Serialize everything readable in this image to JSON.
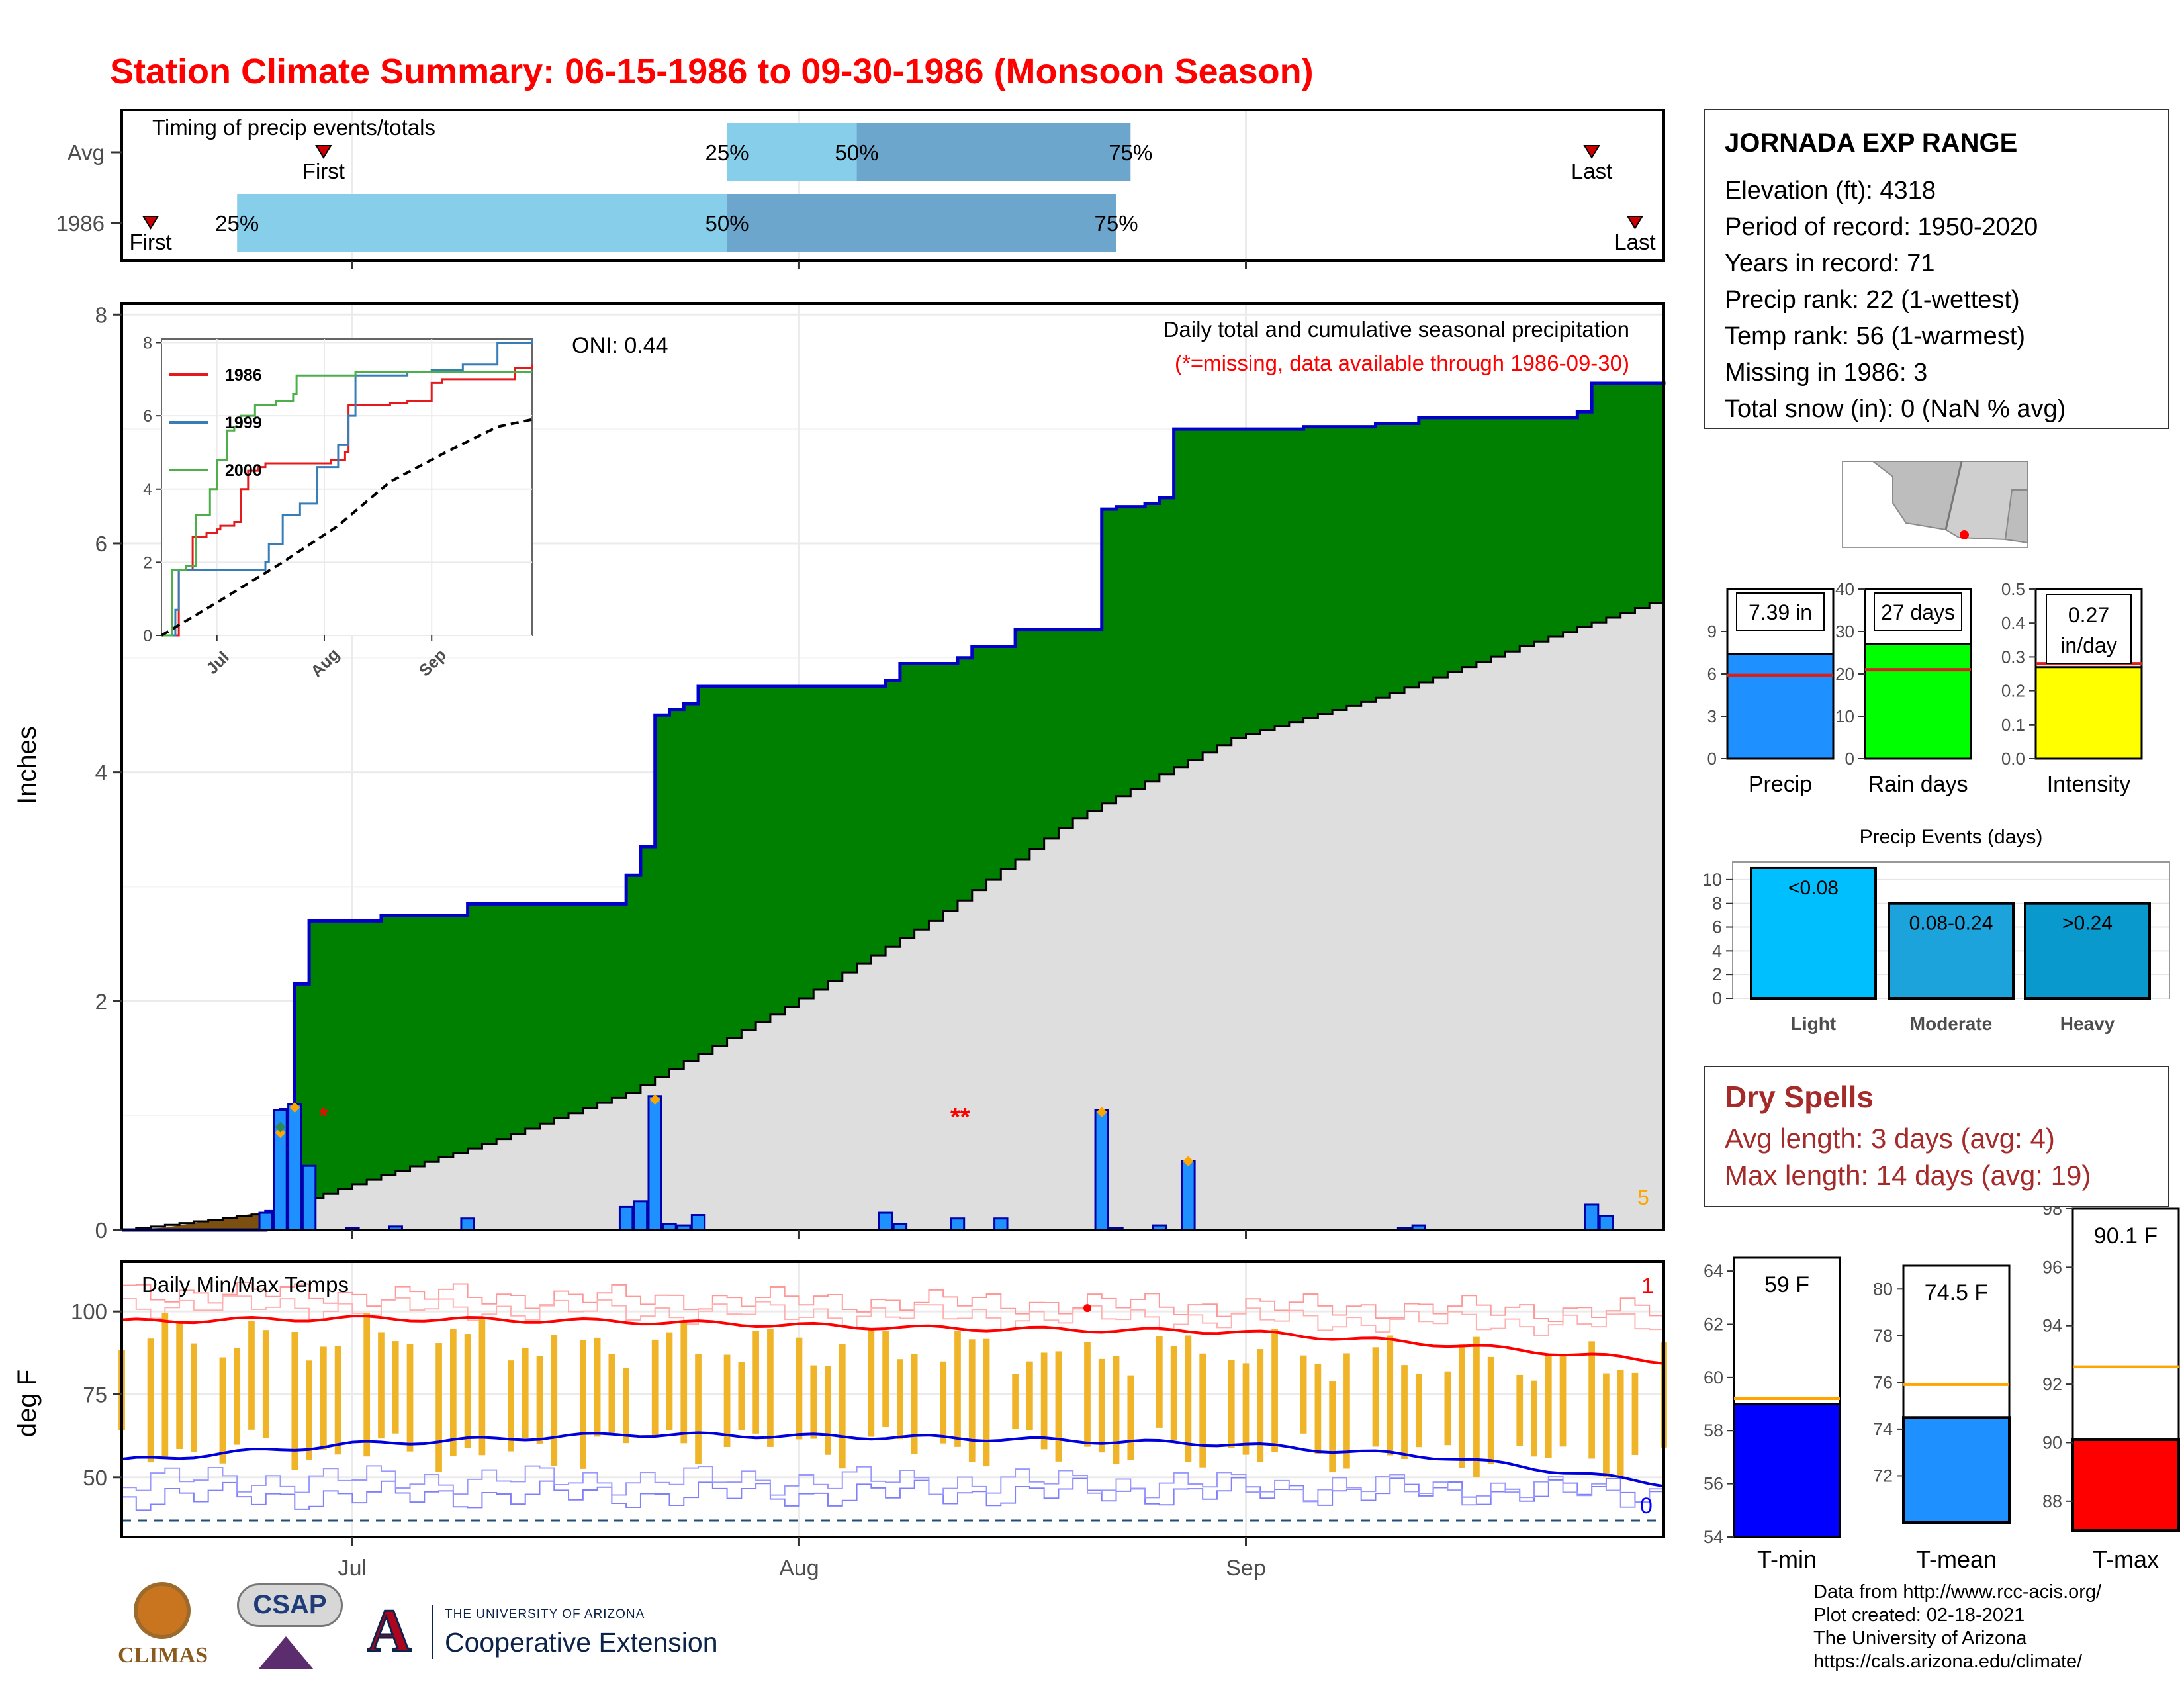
{
  "title": "Station Climate Summary: 06-15-1986 to 09-30-1986 (Monsoon Season)",
  "timing": {
    "title": "Timing of precip events/totals",
    "rows": [
      {
        "label": "Avg",
        "first": "06-29",
        "last": "09-25",
        "q25": "07-27",
        "q50": "08-05",
        "q75": "08-24"
      },
      {
        "label": "1986",
        "first": "06-17",
        "last": "09-28",
        "q25": "06-23",
        "q50": "07-27",
        "q75": "08-23"
      }
    ],
    "first_label": "First",
    "last_label": "Last",
    "pct25": "25%",
    "pct50": "50%",
    "pct75": "75%"
  },
  "main": {
    "ylabel": "Inches",
    "yticks": [
      "0",
      "2",
      "4",
      "6",
      "8"
    ],
    "xticks": [
      "Jul",
      "Aug",
      "Sep"
    ],
    "oni": "ONI: 0.44",
    "legend_line1": "Daily total and cumulative seasonal precipitation",
    "legend_line2": "(*=missing, data available through 1986-09-30)",
    "missing_marker": "**",
    "corner_count": "5",
    "colors": {
      "surplus": "#008000",
      "cumulative_line": "#0000cc",
      "avg_fill": "#dedede",
      "bars": "#1e90ff",
      "deficit": "#7a4f0f",
      "title": "#ff0000"
    }
  },
  "inset": {
    "yticks": [
      "0",
      "2",
      "4",
      "6",
      "8"
    ],
    "xticks": [
      "Jul",
      "Aug",
      "Sep"
    ],
    "series": [
      {
        "name": "1986",
        "color": "#e41a1c"
      },
      {
        "name": "1999",
        "color": "#377eb8"
      },
      {
        "name": "2000",
        "color": "#4daf4a"
      }
    ]
  },
  "temps": {
    "title": "Daily Min/Max Temps",
    "ylabel": "deg F",
    "yticks": [
      "50",
      "75",
      "100"
    ],
    "xticks": [
      "Jul",
      "Aug",
      "Sep"
    ],
    "record_high_count": "1",
    "record_low_count": "0"
  },
  "station": {
    "name": "JORNADA EXP RANGE",
    "lines": [
      "Elevation (ft): 4318",
      "Period of record: 1950-2020",
      "Years in record: 71",
      "Precip rank: 22 (1-wettest)",
      "Temp rank: 56 (1-warmest)",
      "Missing in 1986: 3",
      "Total snow (in): 0 (NaN % avg)"
    ]
  },
  "summary_bars": [
    {
      "label": "Precip",
      "value_text": "7.39 in",
      "value": 7.39,
      "avg": 5.9,
      "ymax": 12,
      "yticks": [
        "0",
        "3",
        "6",
        "9"
      ],
      "color": "#1e90ff"
    },
    {
      "label": "Rain days",
      "value_text": "27 days",
      "value": 27,
      "avg": 21,
      "ymax": 40,
      "yticks": [
        "0",
        "10",
        "20",
        "30",
        "40"
      ],
      "color": "#00ff00"
    },
    {
      "label": "Intensity",
      "value_text": "0.27 in/day",
      "value": 0.27,
      "avg": 0.28,
      "ymax": 0.5,
      "yticks": [
        "0.0",
        "0.1",
        "0.2",
        "0.3",
        "0.4",
        "0.5"
      ],
      "color": "#ffff00"
    }
  ],
  "events": {
    "title": "Precip Events (days)",
    "yticks": [
      "0",
      "2",
      "4",
      "6",
      "8",
      "10"
    ],
    "bars": [
      {
        "label": "Light",
        "inner": "<0.08",
        "value": 11,
        "color": "#00bfff"
      },
      {
        "label": "Moderate",
        "inner": "0.08-0.24",
        "value": 8,
        "color": "#1ca3dc"
      },
      {
        "label": "Heavy",
        "inner": ">0.24",
        "value": 8,
        "color": "#0999cc"
      }
    ]
  },
  "dry_spells": {
    "title": "Dry Spells",
    "lines": [
      "Avg length: 3 days (avg: 4)",
      "Max length: 14 days (avg: 19)"
    ]
  },
  "temp_bars": [
    {
      "label": "T-min",
      "value_text": "59 F",
      "value": 59,
      "avg": 59.2,
      "ymin": 54,
      "ymax": 64.5,
      "yticks": [
        "54",
        "56",
        "58",
        "60",
        "62",
        "64"
      ],
      "color": "#0000ff"
    },
    {
      "label": "T-mean",
      "value_text": "74.5 F",
      "value": 74.5,
      "avg": 75.9,
      "ymin": 70,
      "ymax": 81,
      "yticks": [
        "72",
        "74",
        "76",
        "78",
        "80"
      ],
      "color": "#1e90ff"
    },
    {
      "label": "T-max",
      "value_text": "90.1 F",
      "value": 90.1,
      "avg": 92.6,
      "ymin": 87,
      "ymax": 98,
      "yticks": [
        "88",
        "90",
        "92",
        "94",
        "96",
        "98"
      ],
      "color": "#ff0000"
    }
  ],
  "logos": {
    "climas": "CLIMAS",
    "csap": "CSAP",
    "ua_small": "THE UNIVERSITY OF ARIZONA",
    "ua_big": "Cooperative Extension"
  },
  "credits": [
    "Data from http://www.rcc-acis.org/",
    "Plot created: 02-18-2021",
    "The University of Arizona",
    "https://cals.arizona.edu/climate/"
  ],
  "chart_data": [
    {
      "type": "area",
      "title": "Daily total and cumulative seasonal precipitation",
      "ylabel": "Inches",
      "xlim": [
        "1986-06-15",
        "1986-09-30"
      ],
      "ylim": [
        0,
        8.1
      ],
      "grid": true,
      "cumulative_1986": [
        [
          "06-15",
          0.0
        ],
        [
          "06-25",
          0.16
        ],
        [
          "06-26",
          1.05
        ],
        [
          "06-27",
          2.15
        ],
        [
          "06-28",
          2.7
        ],
        [
          "07-03",
          2.75
        ],
        [
          "07-09",
          2.85
        ],
        [
          "07-20",
          3.1
        ],
        [
          "07-21",
          3.35
        ],
        [
          "07-22",
          4.5
        ],
        [
          "07-23",
          4.55
        ],
        [
          "07-24",
          4.6
        ],
        [
          "07-25",
          4.75
        ],
        [
          "08-07",
          4.8
        ],
        [
          "08-08",
          4.95
        ],
        [
          "08-12",
          5.0
        ],
        [
          "08-13",
          5.1
        ],
        [
          "08-16",
          5.25
        ],
        [
          "08-22",
          6.3
        ],
        [
          "08-23",
          6.32
        ],
        [
          "08-25",
          6.35
        ],
        [
          "08-26",
          6.4
        ],
        [
          "08-27",
          7.0
        ],
        [
          "09-05",
          7.02
        ],
        [
          "09-10",
          7.05
        ],
        [
          "09-13",
          7.1
        ],
        [
          "09-24",
          7.15
        ],
        [
          "09-25",
          7.4
        ],
        [
          "09-30",
          7.39
        ]
      ],
      "average_cumulative": [
        [
          "06-15",
          0.0
        ],
        [
          "06-25",
          0.15
        ],
        [
          "07-01",
          0.4
        ],
        [
          "07-10",
          0.75
        ],
        [
          "07-20",
          1.2
        ],
        [
          "07-31",
          1.95
        ],
        [
          "08-10",
          2.7
        ],
        [
          "08-20",
          3.6
        ],
        [
          "08-31",
          4.3
        ],
        [
          "09-10",
          4.65
        ],
        [
          "09-20",
          5.1
        ],
        [
          "09-30",
          5.52
        ]
      ],
      "daily_precip": [
        [
          "06-25",
          0.15
        ],
        [
          "06-26",
          1.05
        ],
        [
          "06-27",
          1.1
        ],
        [
          "06-28",
          0.56
        ],
        [
          "07-01",
          0.02
        ],
        [
          "07-04",
          0.03
        ],
        [
          "07-09",
          0.1
        ],
        [
          "07-20",
          0.2
        ],
        [
          "07-21",
          0.25
        ],
        [
          "07-22",
          1.17
        ],
        [
          "07-23",
          0.05
        ],
        [
          "07-24",
          0.04
        ],
        [
          "07-25",
          0.13
        ],
        [
          "08-07",
          0.15
        ],
        [
          "08-08",
          0.05
        ],
        [
          "08-12",
          0.1
        ],
        [
          "08-15",
          0.1
        ],
        [
          "08-22",
          1.05
        ],
        [
          "08-23",
          0.02
        ],
        [
          "08-26",
          0.04
        ],
        [
          "08-28",
          0.6
        ],
        [
          "09-12",
          0.02
        ],
        [
          "09-13",
          0.04
        ],
        [
          "09-25",
          0.22
        ],
        [
          "09-26",
          0.12
        ]
      ],
      "missing_dates": [
        "06-29",
        "08-11",
        "08-12"
      ],
      "oni": 0.44
    },
    {
      "type": "line",
      "ylim": [
        0,
        8.1
      ],
      "series": [
        {
          "name": "1986",
          "values": [
            [
              "06-15",
              0
            ],
            [
              "06-20",
              1.8
            ],
            [
              "06-24",
              2.7
            ],
            [
              "06-28",
              2.8
            ],
            [
              "07-01",
              2.9
            ],
            [
              "07-02",
              3.0
            ],
            [
              "07-06",
              3.1
            ],
            [
              "07-08",
              4.0
            ],
            [
              "07-10",
              4.5
            ],
            [
              "07-13",
              4.6
            ],
            [
              "07-15",
              4.7
            ],
            [
              "08-03",
              4.8
            ],
            [
              "08-07",
              5.0
            ],
            [
              "08-08",
              6.3
            ],
            [
              "08-20",
              6.35
            ],
            [
              "08-25",
              6.4
            ],
            [
              "09-01",
              6.9
            ],
            [
              "09-04",
              7.0
            ],
            [
              "09-25",
              7.3
            ],
            [
              "09-30",
              7.4
            ]
          ]
        },
        {
          "name": "1999",
          "values": [
            [
              "06-15",
              0
            ],
            [
              "06-19",
              0.7
            ],
            [
              "06-20",
              1.8
            ],
            [
              "07-15",
              2.0
            ],
            [
              "07-16",
              2.5
            ],
            [
              "07-20",
              3.3
            ],
            [
              "07-25",
              3.6
            ],
            [
              "07-30",
              4.6
            ],
            [
              "08-05",
              5.2
            ],
            [
              "08-08",
              6.0
            ],
            [
              "08-10",
              7.1
            ],
            [
              "08-25",
              7.2
            ],
            [
              "09-01",
              7.25
            ],
            [
              "09-10",
              7.4
            ],
            [
              "09-20",
              8.0
            ],
            [
              "09-30",
              8.1
            ]
          ]
        },
        {
          "name": "2000",
          "values": [
            [
              "06-15",
              0
            ],
            [
              "06-18",
              1.8
            ],
            [
              "06-22",
              1.9
            ],
            [
              "06-25",
              3.3
            ],
            [
              "06-29",
              4.0
            ],
            [
              "07-01",
              4.8
            ],
            [
              "07-04",
              5.6
            ],
            [
              "07-06",
              5.7
            ],
            [
              "07-08",
              6.0
            ],
            [
              "07-12",
              6.3
            ],
            [
              "07-18",
              6.4
            ],
            [
              "07-23",
              6.6
            ],
            [
              "07-24",
              7.1
            ],
            [
              "08-10",
              7.2
            ],
            [
              "09-30",
              7.2
            ]
          ]
        },
        {
          "name": "Average",
          "values": [
            [
              "06-15",
              0
            ],
            [
              "07-01",
              0.9
            ],
            [
              "07-20",
              2.0
            ],
            [
              "08-05",
              3.0
            ],
            [
              "08-20",
              4.2
            ],
            [
              "09-05",
              5.0
            ],
            [
              "09-20",
              5.7
            ],
            [
              "09-30",
              5.9
            ]
          ]
        }
      ]
    },
    {
      "type": "bar",
      "title": "Daily Min/Max Temps",
      "ylabel": "deg F",
      "ylim": [
        32,
        115
      ],
      "daily_range_bars": "daily min-max range for each day",
      "avg_max": [
        [
          "06-15",
          97
        ],
        [
          "07-01",
          98
        ],
        [
          "07-20",
          97
        ],
        [
          "08-10",
          95
        ],
        [
          "08-31",
          94
        ],
        [
          "09-15",
          90
        ],
        [
          "09-30",
          85
        ]
      ],
      "avg_min": [
        [
          "06-15",
          55
        ],
        [
          "07-01",
          60
        ],
        [
          "07-20",
          63
        ],
        [
          "08-10",
          62
        ],
        [
          "08-31",
          60
        ],
        [
          "09-15",
          56
        ],
        [
          "09-30",
          48
        ]
      ],
      "record_high_markers": 1,
      "record_low_markers": 0
    }
  ]
}
